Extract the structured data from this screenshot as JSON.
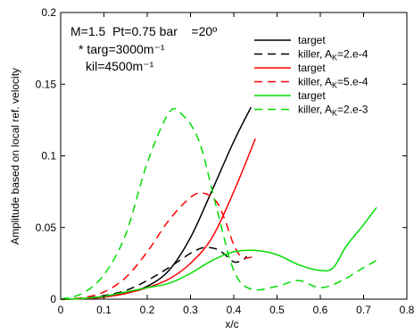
{
  "chart_data": {
    "type": "line",
    "title": "",
    "xlabel": "x/c",
    "ylabel": "Amplitude based on local ref. velocity",
    "xlim": [
      0,
      0.8
    ],
    "ylim": [
      0,
      0.2
    ],
    "x_ticks": [
      "0",
      "0.1",
      "0.2",
      "0.3",
      "0.4",
      "0.5",
      "0.6",
      "0.7",
      "0.8"
    ],
    "y_ticks": [
      "0",
      "0.05",
      "0.1",
      "0.15",
      "0.2"
    ],
    "grid": false,
    "legend_position": "top-right",
    "annotations": [
      "M=1.5  Pt=0.75 bar    =20º",
      "* targ=3000m⁻¹",
      "kil=4500m⁻¹"
    ],
    "series": [
      {
        "name": "target",
        "color": "#000000",
        "dash": "solid",
        "x": [
          0,
          0.05,
          0.1,
          0.15,
          0.2,
          0.25,
          0.3,
          0.35,
          0.4,
          0.44
        ],
        "y": [
          0,
          0.0003,
          0.0015,
          0.004,
          0.009,
          0.02,
          0.043,
          0.076,
          0.11,
          0.134
        ]
      },
      {
        "name": "killer, A",
        "name_sub": "K",
        "name_suffix": "=2.e-4",
        "color": "#000000",
        "dash": "dashed",
        "x": [
          0,
          0.05,
          0.1,
          0.15,
          0.2,
          0.25,
          0.3,
          0.33,
          0.36,
          0.38,
          0.4,
          0.42,
          0.43
        ],
        "y": [
          0,
          0.0005,
          0.0025,
          0.006,
          0.013,
          0.022,
          0.032,
          0.036,
          0.035,
          0.031,
          0.026,
          0.027,
          0.03
        ]
      },
      {
        "name": "target",
        "color": "#ff0000",
        "dash": "solid",
        "x": [
          0,
          0.05,
          0.1,
          0.15,
          0.2,
          0.25,
          0.3,
          0.35,
          0.4,
          0.45
        ],
        "y": [
          0,
          0.0003,
          0.0015,
          0.004,
          0.008,
          0.014,
          0.025,
          0.043,
          0.075,
          0.112
        ]
      },
      {
        "name": "killer, A",
        "name_sub": "K",
        "name_suffix": "=5.e-4",
        "color": "#ff0000",
        "dash": "dashed",
        "x": [
          0,
          0.05,
          0.1,
          0.15,
          0.2,
          0.25,
          0.3,
          0.33,
          0.36,
          0.38,
          0.4,
          0.42,
          0.45
        ],
        "y": [
          0,
          0.001,
          0.005,
          0.015,
          0.033,
          0.055,
          0.071,
          0.074,
          0.068,
          0.055,
          0.038,
          0.029,
          0.03
        ]
      },
      {
        "name": "target",
        "color": "#00dd00",
        "dash": "solid",
        "x": [
          0,
          0.05,
          0.1,
          0.15,
          0.2,
          0.25,
          0.3,
          0.35,
          0.4,
          0.45,
          0.5,
          0.55,
          0.6,
          0.63,
          0.66,
          0.7,
          0.73
        ],
        "y": [
          0,
          0.0005,
          0.002,
          0.005,
          0.008,
          0.011,
          0.018,
          0.027,
          0.033,
          0.034,
          0.031,
          0.024,
          0.02,
          0.022,
          0.037,
          0.052,
          0.064
        ]
      },
      {
        "name": "killer, A",
        "name_sub": "K",
        "name_suffix": "=2.e-3",
        "color": "#00dd00",
        "dash": "dashed",
        "x": [
          0,
          0.05,
          0.1,
          0.15,
          0.2,
          0.25,
          0.28,
          0.32,
          0.36,
          0.4,
          0.44,
          0.5,
          0.55,
          0.6,
          0.65,
          0.7,
          0.73
        ],
        "y": [
          0,
          0.004,
          0.017,
          0.045,
          0.095,
          0.13,
          0.129,
          0.11,
          0.064,
          0.02,
          0.007,
          0.009,
          0.013,
          0.008,
          0.013,
          0.022,
          0.027
        ]
      }
    ]
  }
}
